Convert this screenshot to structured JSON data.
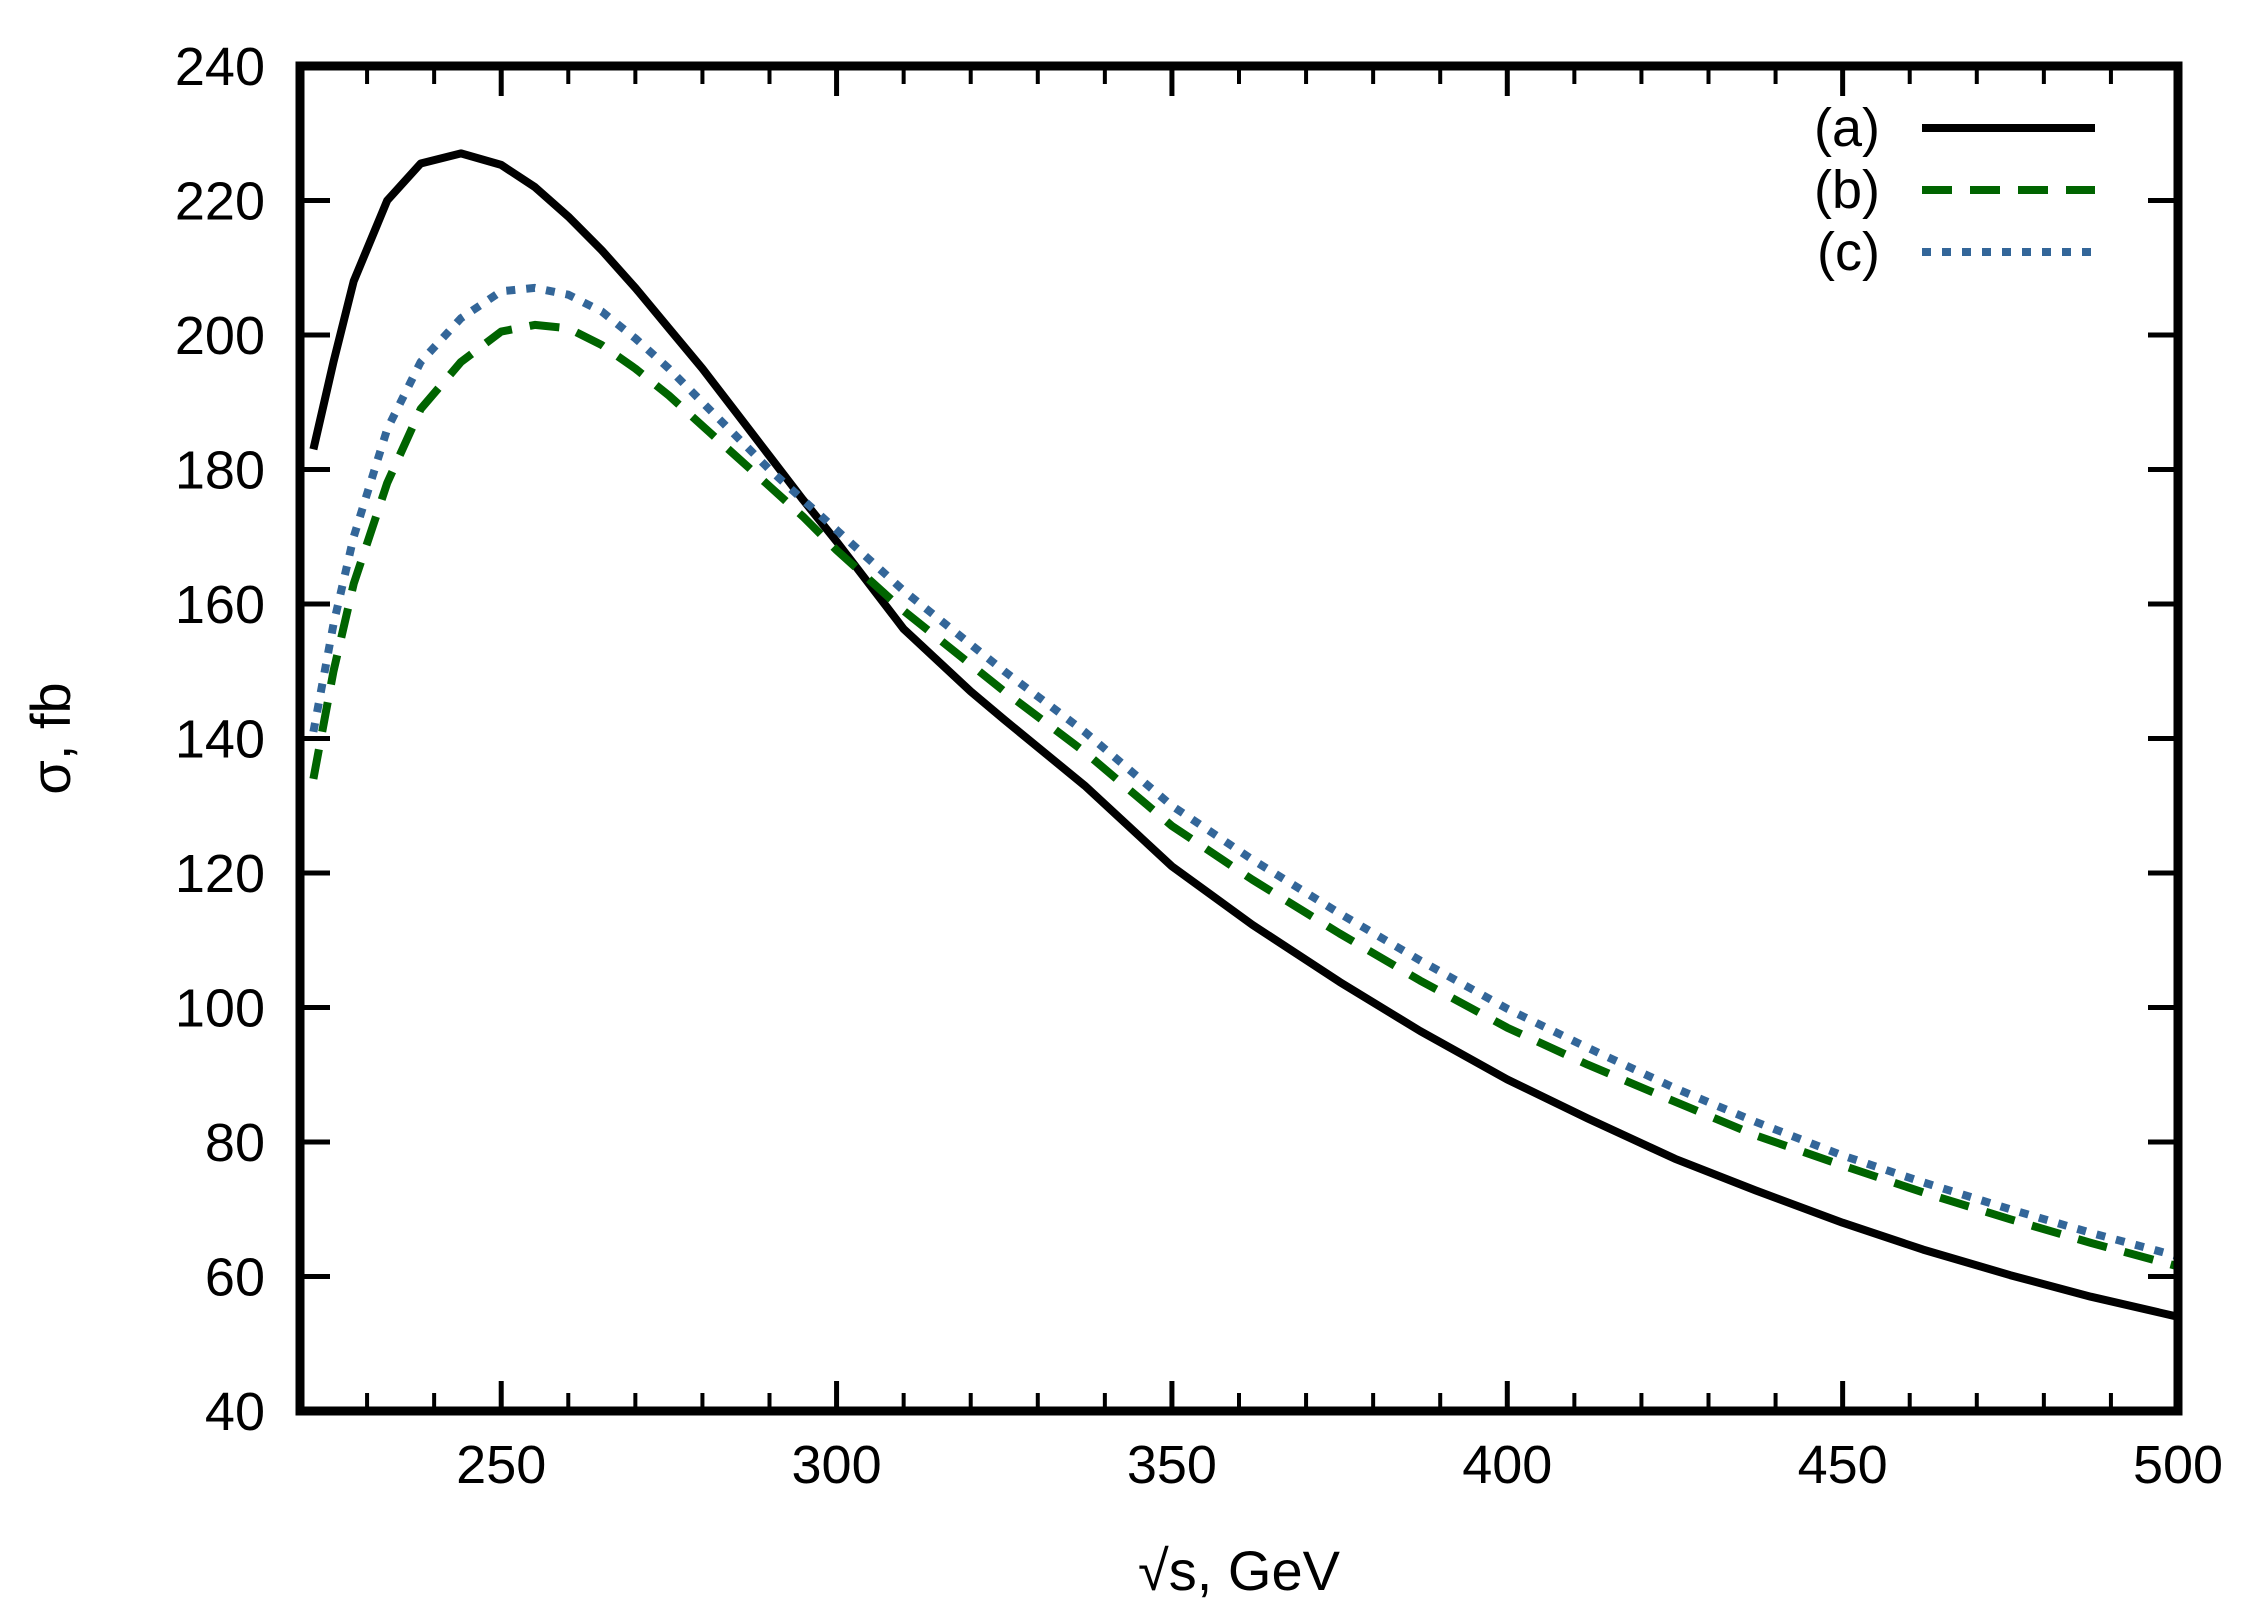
{
  "chart_data": {
    "type": "line",
    "title": "",
    "xlabel": "√s, GeV",
    "ylabel": "σ, fb",
    "xlim": [
      220,
      500
    ],
    "ylim": [
      40,
      240
    ],
    "xticks": [
      250,
      300,
      350,
      400,
      450,
      500
    ],
    "yticks": [
      40,
      60,
      80,
      100,
      120,
      140,
      160,
      180,
      200,
      220,
      240
    ],
    "x_minor_step": 10,
    "y_minor_step": 20,
    "grid": false,
    "legend_position": "top-right",
    "series": [
      {
        "name": "(a)",
        "color": "#000000",
        "style": "solid",
        "points": [
          [
            222,
            183
          ],
          [
            225,
            196
          ],
          [
            228,
            208
          ],
          [
            233,
            220
          ],
          [
            238,
            225.5
          ],
          [
            244,
            227
          ],
          [
            250,
            225.3
          ],
          [
            255,
            222
          ],
          [
            260,
            217.6
          ],
          [
            265,
            212.6
          ],
          [
            270,
            207
          ],
          [
            275,
            201
          ],
          [
            280,
            195
          ],
          [
            285,
            188.5
          ],
          [
            290,
            182
          ],
          [
            295,
            175.5
          ],
          [
            300,
            169.3
          ],
          [
            310,
            156.3
          ],
          [
            320,
            147
          ],
          [
            325,
            142.8
          ],
          [
            337,
            133
          ],
          [
            350,
            121
          ],
          [
            362,
            112.3
          ],
          [
            375,
            103.8
          ],
          [
            387,
            96.5
          ],
          [
            400,
            89.3
          ],
          [
            412,
            83.5
          ],
          [
            425,
            77.5
          ],
          [
            437,
            72.8
          ],
          [
            450,
            68
          ],
          [
            462,
            64
          ],
          [
            475,
            60.2
          ],
          [
            487,
            57
          ],
          [
            500,
            54
          ]
        ]
      },
      {
        "name": "(b)",
        "color": "#006400",
        "style": "dashed",
        "points": [
          [
            222,
            134
          ],
          [
            225,
            150
          ],
          [
            228,
            163
          ],
          [
            233,
            178
          ],
          [
            238,
            189
          ],
          [
            244,
            196
          ],
          [
            250,
            200.5
          ],
          [
            255,
            201.5
          ],
          [
            260,
            201
          ],
          [
            265,
            198.5
          ],
          [
            270,
            195
          ],
          [
            275,
            191
          ],
          [
            280,
            186.5
          ],
          [
            285,
            182
          ],
          [
            290,
            177.5
          ],
          [
            295,
            173
          ],
          [
            300,
            168
          ],
          [
            310,
            159
          ],
          [
            320,
            151
          ],
          [
            325,
            147
          ],
          [
            337,
            138
          ],
          [
            350,
            127
          ],
          [
            362,
            119
          ],
          [
            375,
            111
          ],
          [
            387,
            104
          ],
          [
            400,
            97
          ],
          [
            412,
            91.5
          ],
          [
            425,
            86
          ],
          [
            437,
            81
          ],
          [
            450,
            76.5
          ],
          [
            462,
            72.5
          ],
          [
            475,
            68.5
          ],
          [
            487,
            65
          ],
          [
            500,
            61.5
          ]
        ]
      },
      {
        "name": "(c)",
        "color": "#336699",
        "style": "dotted",
        "points": [
          [
            222,
            141
          ],
          [
            225,
            157
          ],
          [
            228,
            170
          ],
          [
            233,
            186
          ],
          [
            238,
            196
          ],
          [
            244,
            202.5
          ],
          [
            250,
            206.5
          ],
          [
            255,
            207
          ],
          [
            260,
            206
          ],
          [
            265,
            203.5
          ],
          [
            270,
            199.5
          ],
          [
            275,
            195
          ],
          [
            280,
            190
          ],
          [
            285,
            185
          ],
          [
            290,
            180
          ],
          [
            295,
            175.5
          ],
          [
            300,
            171
          ],
          [
            310,
            162
          ],
          [
            320,
            154
          ],
          [
            325,
            150
          ],
          [
            337,
            141
          ],
          [
            350,
            130
          ],
          [
            362,
            122
          ],
          [
            375,
            114
          ],
          [
            387,
            107
          ],
          [
            400,
            99.8
          ],
          [
            412,
            94
          ],
          [
            425,
            88
          ],
          [
            437,
            83
          ],
          [
            450,
            78
          ],
          [
            462,
            74
          ],
          [
            475,
            70
          ],
          [
            487,
            66.5
          ],
          [
            500,
            63
          ]
        ]
      }
    ]
  }
}
